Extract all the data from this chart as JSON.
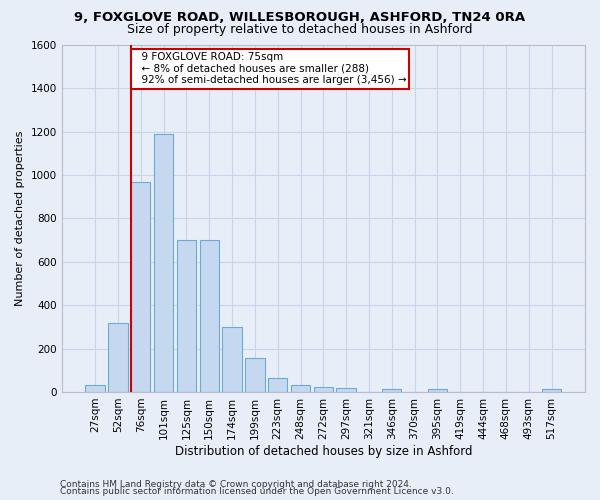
{
  "title1": "9, FOXGLOVE ROAD, WILLESBOROUGH, ASHFORD, TN24 0RA",
  "title2": "Size of property relative to detached houses in Ashford",
  "xlabel": "Distribution of detached houses by size in Ashford",
  "ylabel": "Number of detached properties",
  "categories": [
    "27sqm",
    "52sqm",
    "76sqm",
    "101sqm",
    "125sqm",
    "150sqm",
    "174sqm",
    "199sqm",
    "223sqm",
    "248sqm",
    "272sqm",
    "297sqm",
    "321sqm",
    "346sqm",
    "370sqm",
    "395sqm",
    "419sqm",
    "444sqm",
    "468sqm",
    "493sqm",
    "517sqm"
  ],
  "values": [
    30,
    320,
    970,
    1190,
    700,
    700,
    300,
    155,
    65,
    30,
    22,
    20,
    0,
    15,
    0,
    12,
    0,
    0,
    0,
    0,
    12
  ],
  "bar_color": "#c5d8f0",
  "bar_edge_color": "#6aaad4",
  "grid_color": "#c8d4e8",
  "background_color": "#e8eef8",
  "property_label": "9 FOXGLOVE ROAD: 75sqm",
  "annotation_line1": "← 8% of detached houses are smaller (288)",
  "annotation_line2": "92% of semi-detached houses are larger (3,456) →",
  "vline_color": "#cc0000",
  "annotation_box_facecolor": "#ffffff",
  "annotation_box_edgecolor": "#cc0000",
  "ylim": [
    0,
    1600
  ],
  "yticks": [
    0,
    200,
    400,
    600,
    800,
    1000,
    1200,
    1400,
    1600
  ],
  "footer1": "Contains HM Land Registry data © Crown copyright and database right 2024.",
  "footer2": "Contains public sector information licensed under the Open Government Licence v3.0.",
  "title1_fontsize": 9.5,
  "title2_fontsize": 9,
  "axis_label_fontsize": 8,
  "tick_fontsize": 7.5,
  "annotation_fontsize": 7.5,
  "footer_fontsize": 6.5,
  "vline_bar_index": 2
}
